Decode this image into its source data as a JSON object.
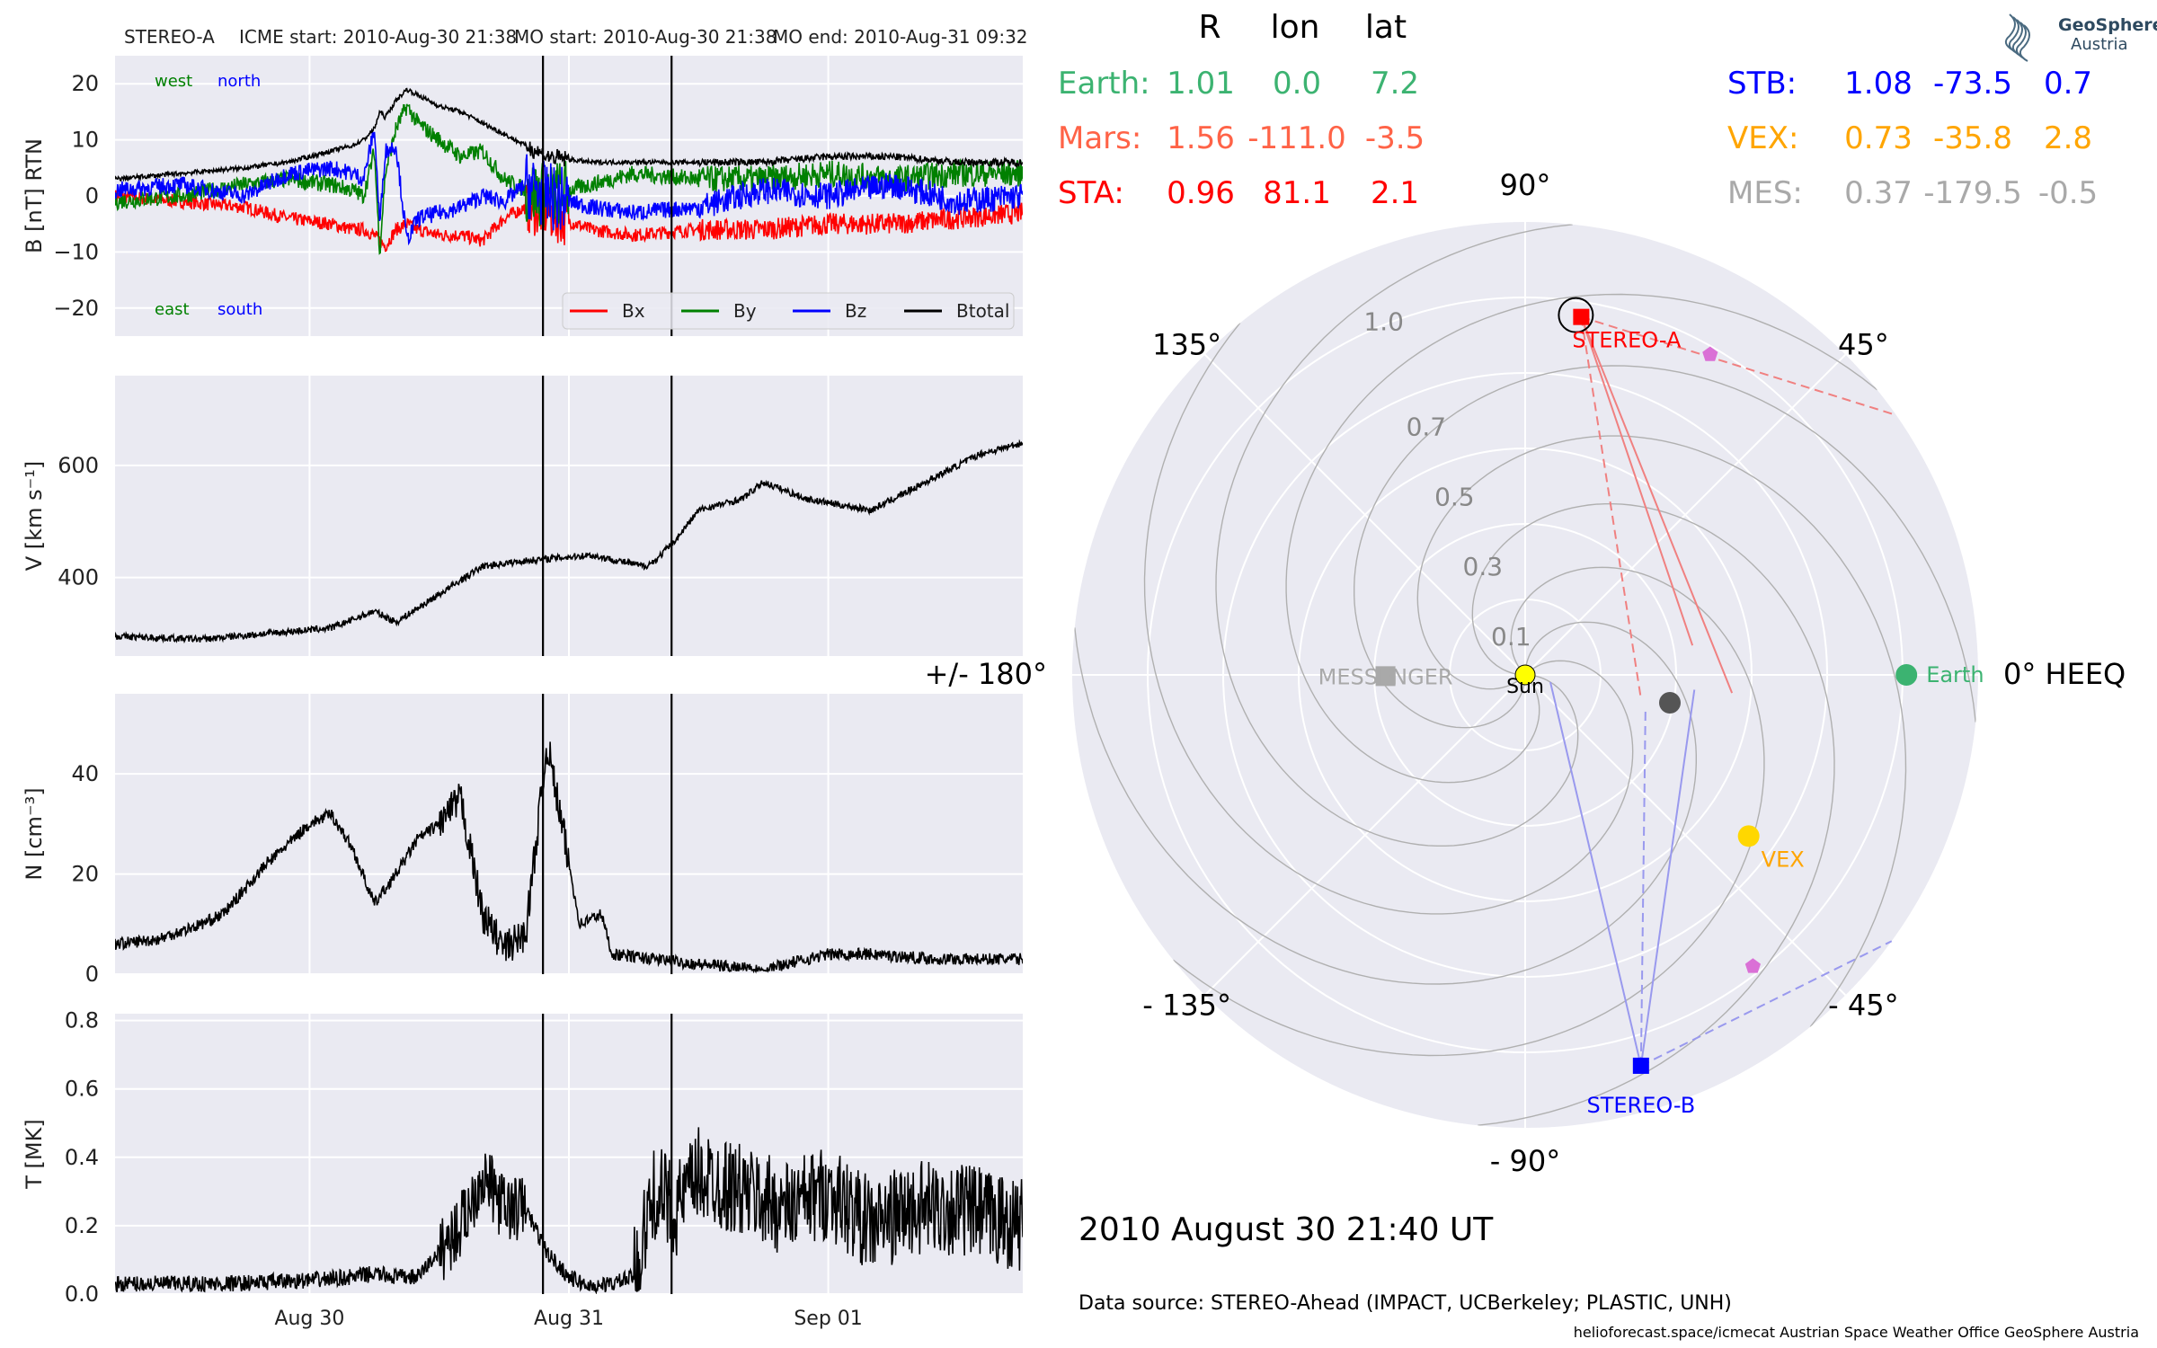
{
  "header": {
    "spacecraft": "STEREO-A",
    "icme_start": "ICME start: 2010-Aug-30 21:38",
    "mo_start": "MO start: 2010-Aug-30 21:38",
    "mo_end": "MO end: 2010-Aug-31 09:32"
  },
  "colors": {
    "panel_bg": "#eaeaf2",
    "grid": "#ffffff",
    "bx": "#ff0000",
    "by": "#008000",
    "bz": "#0000ff",
    "btotal": "#000000",
    "earth": "#3cb371",
    "mars": "#ff6347",
    "sta": "#ff0000",
    "stb": "#0000ff",
    "vex": "#ffa500",
    "mes": "#a9a9a9",
    "psp_marker": "#da70d6"
  },
  "table": {
    "headers": [
      "R",
      "lon",
      "lat"
    ],
    "left_rows": [
      {
        "name": "Earth:",
        "r": "1.01",
        "lon": "0.0",
        "lat": "7.2",
        "color": "#3cb371"
      },
      {
        "name": "Mars:",
        "r": "1.56",
        "lon": "-111.0",
        "lat": "-3.5",
        "color": "#ff6347"
      },
      {
        "name": "STA:",
        "r": "0.96",
        "lon": "81.1",
        "lat": "2.1",
        "color": "#ff0000"
      }
    ],
    "right_rows": [
      {
        "name": "STB:",
        "r": "1.08",
        "lon": "-73.5",
        "lat": "0.7",
        "color": "#0000ff"
      },
      {
        "name": "VEX:",
        "r": "0.73",
        "lon": "-35.8",
        "lat": "2.8",
        "color": "#ffa500"
      },
      {
        "name": "MES:",
        "r": "0.37",
        "lon": "-179.5",
        "lat": "-0.5",
        "color": "#a9a9a9"
      }
    ]
  },
  "logo": {
    "line1": "GeoSphere",
    "line2": "Austria"
  },
  "footer": {
    "timestamp": "2010 August 30  21:40 UT",
    "source": "Data source: STEREO-Ahead (IMPACT, UCBerkeley; PLASTIC, UNH)",
    "credits": "helioforecast.space/icmecat   Austrian Space Weather Office   GeoSphere Austria"
  },
  "chart_data": [
    {
      "type": "line",
      "ylabel": "B [nT] RTN",
      "ylim": [
        -25,
        25
      ],
      "yticks": [
        "20",
        "10",
        "0",
        "−10",
        "−20"
      ],
      "x_range": [
        "2010-08-29 06:00",
        "2010-09-01 18:00"
      ],
      "annot": {
        "west": "west",
        "north": "north",
        "east": "east",
        "south": "south"
      },
      "legend": [
        "Bx",
        "By",
        "Bz",
        "Btotal"
      ],
      "legend_position": "lower right",
      "grid": true,
      "x_hours": [
        0,
        6,
        12,
        16,
        20,
        22,
        23,
        24,
        24.5,
        25,
        26,
        27,
        28,
        30,
        32,
        34,
        36,
        38,
        40,
        44,
        48,
        54,
        60,
        66,
        72,
        78,
        84
      ],
      "series": [
        {
          "name": "Bx",
          "color": "#ff0000",
          "values": [
            0,
            -1,
            -2,
            -4,
            -5,
            -6,
            -6,
            -7,
            -8,
            -9,
            -6,
            -5,
            -6,
            -7,
            -7,
            -8,
            -4,
            -2,
            -3,
            -6,
            -7,
            -6,
            -6,
            -5,
            -5,
            -4,
            -3
          ]
        },
        {
          "name": "By",
          "color": "#008000",
          "values": [
            -1,
            0,
            2,
            3,
            2,
            1,
            0,
            8,
            -10,
            4,
            12,
            16,
            13,
            10,
            7,
            8,
            3,
            1,
            0,
            2,
            4,
            3,
            3,
            4,
            3,
            4,
            4
          ]
        },
        {
          "name": "Bz",
          "color": "#0000ff",
          "values": [
            1,
            2,
            0,
            4,
            5,
            4,
            3,
            12,
            -5,
            8,
            9,
            -8,
            -4,
            -3,
            -2,
            0,
            -1,
            2,
            0,
            -2,
            -3,
            -2,
            1,
            0,
            2,
            -1,
            0
          ]
        },
        {
          "name": "Btotal",
          "color": "#000000",
          "values": [
            3,
            4,
            5,
            6,
            8,
            9,
            10,
            12,
            15,
            14,
            17,
            19,
            18,
            16,
            15,
            13,
            11,
            9,
            7,
            6,
            6,
            6,
            6,
            7,
            7,
            6,
            6
          ]
        }
      ]
    },
    {
      "type": "line",
      "ylabel": "V [km s⁻¹]",
      "ylim": [
        260,
        760
      ],
      "yticks": [
        "600",
        "400"
      ],
      "grid": true,
      "series": [
        {
          "name": "V",
          "color": "#000000",
          "x_hours": [
            0,
            8,
            14,
            20,
            24,
            26,
            34,
            38,
            44,
            49,
            50,
            52,
            54,
            58,
            60,
            64,
            70,
            74,
            80,
            84
          ],
          "values": [
            295,
            290,
            300,
            310,
            340,
            320,
            420,
            430,
            440,
            420,
            430,
            470,
            520,
            540,
            570,
            540,
            520,
            560,
            620,
            640
          ]
        }
      ]
    },
    {
      "type": "line",
      "ylabel": "N [cm⁻³]",
      "ylim": [
        0,
        56
      ],
      "yticks": [
        "40",
        "20",
        "0"
      ],
      "grid": true,
      "series": [
        {
          "name": "N",
          "color": "#000000",
          "x_hours": [
            0,
            4,
            8,
            10,
            14,
            18,
            20,
            22,
            24,
            26,
            28,
            30,
            32,
            34,
            36,
            38,
            40,
            43,
            45,
            46,
            50,
            54,
            60,
            66,
            70,
            76,
            84
          ],
          "values": [
            6,
            7,
            10,
            12,
            22,
            30,
            32,
            25,
            14,
            20,
            27,
            30,
            35,
            12,
            5,
            8,
            46,
            10,
            12,
            4,
            3,
            2,
            1,
            4,
            4,
            3,
            3
          ]
        }
      ]
    },
    {
      "type": "line",
      "ylabel": "T [MK]",
      "ylim": [
        0,
        0.82
      ],
      "yticks": [
        "0.8",
        "0.6",
        "0.4",
        "0.2",
        "0.0"
      ],
      "xtick_labels": [
        "Aug 30",
        "Aug 31",
        "Sep 01"
      ],
      "grid": true,
      "series": [
        {
          "name": "T",
          "color": "#000000",
          "x_hours": [
            0,
            10,
            18,
            22,
            24,
            26,
            28,
            32,
            34,
            36,
            38,
            40,
            42,
            44,
            46,
            48,
            50,
            52,
            54,
            58,
            62,
            66,
            70,
            74,
            78,
            84
          ],
          "values": [
            0.03,
            0.03,
            0.04,
            0.05,
            0.06,
            0.05,
            0.05,
            0.2,
            0.35,
            0.25,
            0.25,
            0.12,
            0.05,
            0.02,
            0.03,
            0.05,
            0.3,
            0.25,
            0.35,
            0.3,
            0.25,
            0.3,
            0.2,
            0.25,
            0.25,
            0.2
          ]
        }
      ]
    },
    {
      "type": "scatter",
      "subtype": "polar",
      "rlim": [
        0,
        1.2
      ],
      "rticks": [
        "0.1",
        "0.3",
        "0.5",
        "0.7",
        "1.0"
      ],
      "angle_labels": [
        "90°",
        "45°",
        "0° HEEQ",
        "- 45°",
        "- 90°",
        "- 135°",
        "+/- 180°",
        "135°"
      ],
      "points": [
        {
          "name": "Sun",
          "r": 0.0,
          "lon": 0.0,
          "marker": "circle",
          "color": "#ffff00"
        },
        {
          "name": "Earth",
          "r": 1.01,
          "lon": 0.0,
          "marker": "circle",
          "color": "#3cb371"
        },
        {
          "name": "STEREO-A",
          "r": 0.96,
          "lon": 81.1,
          "marker": "square",
          "color": "#ff0000"
        },
        {
          "name": "STEREO-B",
          "r": 1.08,
          "lon": -73.5,
          "marker": "square",
          "color": "#0000ff"
        },
        {
          "name": "VEX",
          "r": 0.73,
          "lon": -35.8,
          "marker": "circle",
          "color": "#ffd700"
        },
        {
          "name": "MESSENGER",
          "r": 0.37,
          "lon": -179.5,
          "marker": "square",
          "color": "#a9a9a9"
        },
        {
          "name": "",
          "r": 1.56,
          "lon": -111.0,
          "marker": "circle",
          "color": "#555555"
        }
      ]
    }
  ]
}
